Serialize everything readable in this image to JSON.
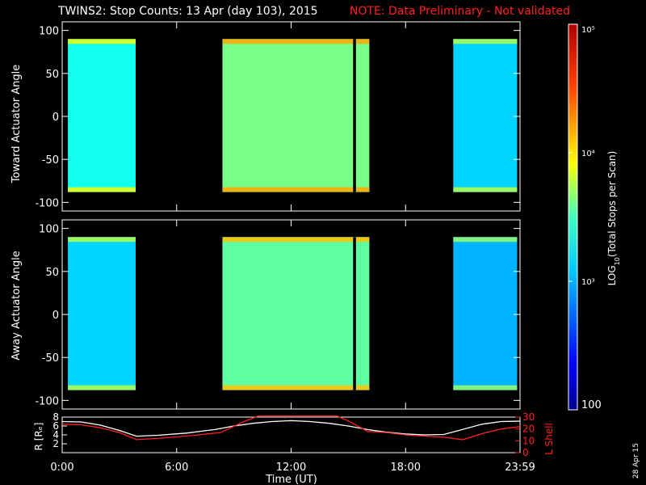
{
  "title": "TWINS2: Stop Counts: 13 Apr (day 103), 2015",
  "note": "NOTE: Data Preliminary - Not validated",
  "stamp": "28 Apr 15",
  "colors": {
    "background": "#000000",
    "axes": "#ffffff",
    "note": "#ff2020",
    "r_line": "#ffffff",
    "lshell_line": "#ff2020"
  },
  "chart_data": [
    {
      "type": "heatmap",
      "panel": "top",
      "ylabel": "Toward Actuator Angle",
      "xlim": [
        0,
        24
      ],
      "ylim": [
        -110,
        110
      ],
      "yticks": [
        100,
        50,
        0,
        -50,
        -100
      ],
      "data_ylim": [
        -88,
        90
      ],
      "xticks": [
        0,
        6,
        12,
        18,
        24
      ],
      "xticklabels": [],
      "coverage_hours": [
        [
          0.3,
          3.85
        ],
        [
          8.4,
          16.1
        ],
        [
          20.5,
          23.85
        ]
      ],
      "gaps_hours": [
        [
          15.25,
          15.4
        ]
      ],
      "color_scale": "log",
      "value_range": [
        100,
        100000
      ],
      "typical_counts_per_interval": [
        1500,
        3000,
        1000
      ]
    },
    {
      "type": "heatmap",
      "panel": "bottom",
      "ylabel": "Away Actuator Angle",
      "xlim": [
        0,
        24
      ],
      "ylim": [
        -110,
        110
      ],
      "yticks": [
        100,
        50,
        0,
        -50,
        -100
      ],
      "data_ylim": [
        -88,
        90
      ],
      "xticks": [
        0,
        6,
        12,
        18,
        24
      ],
      "xticklabels": [],
      "coverage_hours": [
        [
          0.3,
          3.85
        ],
        [
          8.4,
          16.1
        ],
        [
          20.5,
          23.85
        ]
      ],
      "gaps_hours": [
        [
          15.25,
          15.4
        ]
      ],
      "color_scale": "log",
      "value_range": [
        100,
        100000
      ],
      "typical_counts_per_interval": [
        1000,
        2500,
        800
      ]
    },
    {
      "type": "line",
      "panel": "orbit",
      "xlabel": "Time (UT)",
      "xlim": [
        0,
        24
      ],
      "xticks": [
        0,
        6,
        12,
        18,
        24
      ],
      "xticklabels": [
        "0:00",
        "6:00",
        "12:00",
        "18:00",
        "23:59"
      ],
      "ylabel": "R [Rₑ]",
      "ylim": [
        0,
        8
      ],
      "yticks": [
        2,
        4,
        6,
        8
      ],
      "y2label": "L Shell",
      "y2lim": [
        0,
        30
      ],
      "y2ticks": [
        0,
        10,
        20,
        30
      ],
      "series": [
        {
          "axis": "left",
          "x": [
            0,
            1,
            2,
            3,
            3.9,
            5,
            6.5,
            8,
            9,
            10,
            11,
            12,
            13,
            14,
            15,
            16,
            17,
            18,
            19,
            20,
            20.8,
            22,
            23,
            24
          ],
          "y": [
            7.0,
            6.9,
            6.2,
            5.0,
            3.7,
            3.9,
            4.4,
            5.2,
            6.0,
            6.6,
            7.0,
            7.2,
            7.0,
            6.6,
            6.0,
            5.2,
            4.6,
            4.2,
            4.0,
            4.1,
            5.0,
            6.4,
            7.0,
            7.1
          ]
        },
        {
          "axis": "right",
          "x": [
            0,
            1,
            2,
            3,
            3.9,
            5,
            6.5,
            8.3,
            9.5,
            10.3,
            14.4,
            15.1,
            16,
            17,
            18,
            19,
            20,
            21,
            22,
            23,
            24
          ],
          "y": [
            24,
            23.5,
            21,
            17,
            11,
            12,
            14,
            17,
            26,
            31,
            31,
            26,
            18,
            17,
            15,
            14,
            13,
            11,
            16,
            20,
            22
          ]
        }
      ]
    }
  ],
  "colorbar": {
    "label_prefix": "LOG",
    "label_sub": "10",
    "label_suffix": "(Total Stops per Scan)",
    "scale": "log",
    "ticks": [
      {
        "value": 100000,
        "label": "10⁵"
      },
      {
        "value": 10000,
        "label": "10⁴"
      },
      {
        "value": 1000,
        "label": "10³"
      },
      {
        "value": 100,
        "label": "100"
      }
    ]
  }
}
